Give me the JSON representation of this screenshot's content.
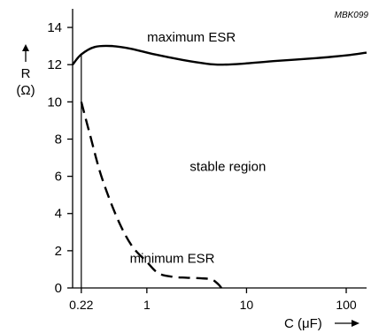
{
  "chart_data": {
    "type": "line",
    "figure_code": "MBK099",
    "ylabel": "R",
    "ylabel_unit": "(Ω)",
    "xlabel": "C (μF)",
    "x_scale": "log",
    "xlim": [
      0.18,
      160
    ],
    "ylim": [
      0,
      15
    ],
    "y_ticks": [
      0,
      2,
      4,
      6,
      8,
      10,
      12,
      14
    ],
    "x_ticks": [
      {
        "value": 0.22,
        "label": "0.22"
      },
      {
        "value": 1,
        "label": "1"
      },
      {
        "value": 10,
        "label": "10"
      },
      {
        "value": 100,
        "label": "100"
      }
    ],
    "reference_line_x": 0.22,
    "series": [
      {
        "name": "maximum ESR",
        "style": "solid",
        "x": [
          0.18,
          0.22,
          0.3,
          0.45,
          0.7,
          1.2,
          2.3,
          4,
          5.5,
          9,
          20,
          50,
          100,
          160
        ],
        "y": [
          12.0,
          12.55,
          12.95,
          13.0,
          12.85,
          12.55,
          12.25,
          12.05,
          12.0,
          12.05,
          12.2,
          12.35,
          12.5,
          12.65
        ]
      },
      {
        "name": "minimum ESR",
        "style": "dashed",
        "x": [
          0.22,
          0.27,
          0.35,
          0.5,
          0.7,
          1.0,
          1.3,
          1.8,
          2.5,
          3.5,
          4.5,
          5.2,
          5.6
        ],
        "y": [
          10.0,
          8.2,
          6.0,
          3.8,
          2.3,
          1.4,
          0.8,
          0.6,
          0.55,
          0.52,
          0.45,
          0.2,
          0.0
        ]
      }
    ],
    "annotations": [
      {
        "text": "maximum ESR",
        "x": 2.8,
        "y": 13.25
      },
      {
        "text": "stable region",
        "x": 6.5,
        "y": 6.3
      },
      {
        "text": "minimum ESR",
        "x": 1.8,
        "y": 1.35
      }
    ]
  }
}
